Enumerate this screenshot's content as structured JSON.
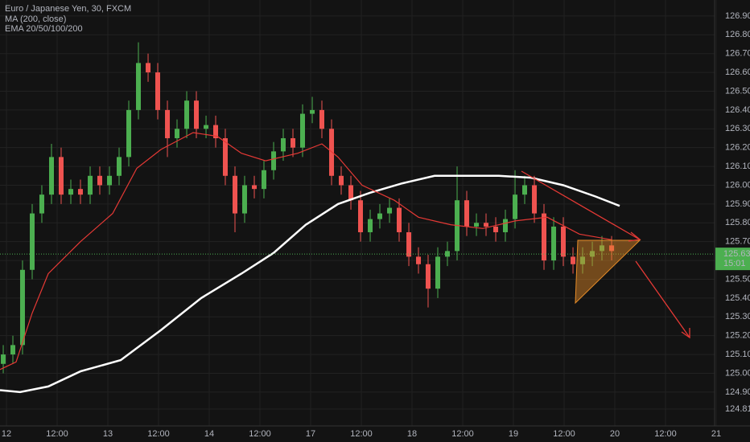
{
  "chart_data": {
    "type": "candlestick",
    "title": "Euro / Japanese Yen, 30, FXCM",
    "indicators": [
      "MA (200, close)",
      "EMA 20/50/100/200"
    ],
    "up_color": "#4caf50",
    "down_color": "#ef5350",
    "grid": true,
    "xlim": [
      -0.127,
      13.968
    ],
    "ylim": [
      124.72,
      126.985
    ],
    "xticks": [
      {
        "value": 0,
        "label": "12"
      },
      {
        "value": 1,
        "label": "12:00"
      },
      {
        "value": 2,
        "label": "13"
      },
      {
        "value": 3,
        "label": "12:00"
      },
      {
        "value": 4,
        "label": "14"
      },
      {
        "value": 5,
        "label": "12:00"
      },
      {
        "value": 6,
        "label": "17"
      },
      {
        "value": 7,
        "label": "12:00"
      },
      {
        "value": 8,
        "label": "18"
      },
      {
        "value": 9,
        "label": "12:00"
      },
      {
        "value": 10,
        "label": "19"
      },
      {
        "value": 11,
        "label": "12:00"
      },
      {
        "value": 12,
        "label": "20"
      },
      {
        "value": 13,
        "label": "12:00"
      },
      {
        "value": 14,
        "label": "21"
      }
    ],
    "yticks": [
      {
        "value": 126.9,
        "label": "126.900"
      },
      {
        "value": 126.8,
        "label": "126.800"
      },
      {
        "value": 126.7,
        "label": "126.700"
      },
      {
        "value": 126.6,
        "label": "126.600"
      },
      {
        "value": 126.5,
        "label": "126.500"
      },
      {
        "value": 126.4,
        "label": "126.400"
      },
      {
        "value": 126.3,
        "label": "126.300"
      },
      {
        "value": 126.2,
        "label": "126.200"
      },
      {
        "value": 126.1,
        "label": "126.100"
      },
      {
        "value": 126.0,
        "label": "126.000"
      },
      {
        "value": 125.9,
        "label": "125.900"
      },
      {
        "value": 125.8,
        "label": "125.800"
      },
      {
        "value": 125.7,
        "label": "125.700"
      },
      {
        "value": 125.6,
        "label": "125.600"
      },
      {
        "value": 125.5,
        "label": "125.500"
      },
      {
        "value": 125.4,
        "label": "125.400"
      },
      {
        "value": 125.3,
        "label": "125.300"
      },
      {
        "value": 125.2,
        "label": "125.200"
      },
      {
        "value": 125.1,
        "label": "125.100"
      },
      {
        "value": 125.0,
        "label": "125.000"
      },
      {
        "value": 124.9,
        "label": "124.900"
      },
      {
        "value": 124.81,
        "label": "124.810"
      }
    ],
    "current_price": {
      "value": 125.634,
      "label": "125.634"
    },
    "countdown": "15:01",
    "price_color": "#4caf50",
    "candles": {
      "x": [
        -0.063,
        0.127,
        0.317,
        0.508,
        0.698,
        0.889,
        1.079,
        1.27,
        1.46,
        1.651,
        1.841,
        2.032,
        2.222,
        2.413,
        2.603,
        2.794,
        2.984,
        3.175,
        3.365,
        3.556,
        3.746,
        3.937,
        4.127,
        4.317,
        4.508,
        4.698,
        4.889,
        5.079,
        5.27,
        5.46,
        5.651,
        5.841,
        6.032,
        6.222,
        6.413,
        6.603,
        6.794,
        6.984,
        7.175,
        7.365,
        7.556,
        7.746,
        7.937,
        8.127,
        8.317,
        8.508,
        8.698,
        8.889,
        9.079,
        9.27,
        9.46,
        9.651,
        9.841,
        10.032,
        10.222,
        10.413,
        10.603,
        10.794,
        10.984,
        11.175,
        11.365,
        11.556,
        11.746,
        11.937
      ],
      "open": [
        125.05,
        125.1,
        125.15,
        125.55,
        125.85,
        125.95,
        126.15,
        125.95,
        125.98,
        125.95,
        126.05,
        126.0,
        126.05,
        126.15,
        126.4,
        126.65,
        126.6,
        126.4,
        126.25,
        126.3,
        126.45,
        126.3,
        126.32,
        126.25,
        126.05,
        125.85,
        126.0,
        125.98,
        126.08,
        126.18,
        126.25,
        126.2,
        126.38,
        126.4,
        126.3,
        126.05,
        126.0,
        125.92,
        125.75,
        125.82,
        125.85,
        125.88,
        125.75,
        125.62,
        125.58,
        125.45,
        125.62,
        125.65,
        125.92,
        125.78,
        125.8,
        125.78,
        125.75,
        125.82,
        125.95,
        126.0,
        125.85,
        125.6,
        125.78,
        125.62,
        125.58,
        125.62,
        125.65,
        125.68
      ],
      "high": [
        125.15,
        125.2,
        125.6,
        125.9,
        126.0,
        126.22,
        126.2,
        126.03,
        126.03,
        126.1,
        126.1,
        126.1,
        126.2,
        126.45,
        126.76,
        126.7,
        126.65,
        126.45,
        126.35,
        126.5,
        126.5,
        126.37,
        126.37,
        126.3,
        126.1,
        126.05,
        126.05,
        126.13,
        126.23,
        126.3,
        126.3,
        126.43,
        126.47,
        126.45,
        126.35,
        126.1,
        126.05,
        125.97,
        125.87,
        125.9,
        125.93,
        125.93,
        125.8,
        125.67,
        125.63,
        125.67,
        125.7,
        126.1,
        125.97,
        125.85,
        125.85,
        125.83,
        125.87,
        126.08,
        126.05,
        126.05,
        125.9,
        125.83,
        125.83,
        125.67,
        125.67,
        125.7,
        125.73,
        125.73
      ],
      "low": [
        125.0,
        125.05,
        125.1,
        125.5,
        125.8,
        125.9,
        125.9,
        125.9,
        125.9,
        125.9,
        125.95,
        125.95,
        126.0,
        126.1,
        126.35,
        126.55,
        126.35,
        126.15,
        126.2,
        126.25,
        126.25,
        126.25,
        126.2,
        126.0,
        125.75,
        125.8,
        125.93,
        125.93,
        126.03,
        126.13,
        126.15,
        126.15,
        126.33,
        126.25,
        126.0,
        125.95,
        125.87,
        125.7,
        125.7,
        125.77,
        125.8,
        125.7,
        125.57,
        125.53,
        125.35,
        125.4,
        125.57,
        125.6,
        125.73,
        125.73,
        125.73,
        125.7,
        125.7,
        125.77,
        125.9,
        125.8,
        125.55,
        125.55,
        125.57,
        125.53,
        125.53,
        125.57,
        125.6,
        125.6
      ],
      "close": [
        125.1,
        125.15,
        125.55,
        125.85,
        125.95,
        126.15,
        125.95,
        125.98,
        125.95,
        126.05,
        126.0,
        126.05,
        126.15,
        126.4,
        126.65,
        126.6,
        126.4,
        126.25,
        126.3,
        126.45,
        126.3,
        126.32,
        126.25,
        126.05,
        125.85,
        126.0,
        125.98,
        126.08,
        126.18,
        126.25,
        126.2,
        126.38,
        126.4,
        126.3,
        126.05,
        126.0,
        125.92,
        125.75,
        125.82,
        125.85,
        125.88,
        125.75,
        125.62,
        125.58,
        125.45,
        125.62,
        125.65,
        125.92,
        125.78,
        125.8,
        125.78,
        125.75,
        125.82,
        125.95,
        126.0,
        125.85,
        125.6,
        125.78,
        125.62,
        125.58,
        125.62,
        125.65,
        125.68,
        125.65
      ]
    },
    "lines": [
      {
        "color": "#ffffff",
        "width": 2.5,
        "x": [
          -0.127,
          0.27,
          0.825,
          1.46,
          2.254,
          3.048,
          3.841,
          4.635,
          5.27,
          5.905,
          6.54,
          7.175,
          7.81,
          8.444,
          9.079,
          9.714,
          10.349,
          10.984,
          11.619,
          12.095
        ],
        "values": [
          124.91,
          124.9,
          124.93,
          125.01,
          125.07,
          125.23,
          125.4,
          125.53,
          125.64,
          125.79,
          125.9,
          125.96,
          126.01,
          126.05,
          126.05,
          126.05,
          126.04,
          126.0,
          125.94,
          125.89
        ]
      },
      {
        "color": "#e53935",
        "width": 1.2,
        "x": [
          -0.127,
          0.19,
          0.508,
          0.825,
          1.46,
          2.095,
          2.571,
          3.048,
          3.683,
          4.159,
          4.635,
          5.111,
          5.746,
          6.222,
          6.54,
          7.016,
          7.651,
          8.127,
          8.762,
          9.397,
          10.032,
          10.667,
          11.302,
          11.937
        ],
        "values": [
          125.02,
          125.06,
          125.32,
          125.53,
          125.7,
          125.85,
          126.09,
          126.19,
          126.28,
          126.26,
          126.17,
          126.13,
          126.17,
          126.22,
          126.15,
          126.0,
          125.92,
          125.83,
          125.79,
          125.77,
          125.81,
          125.83,
          125.74,
          125.71
        ]
      }
    ]
  }
}
